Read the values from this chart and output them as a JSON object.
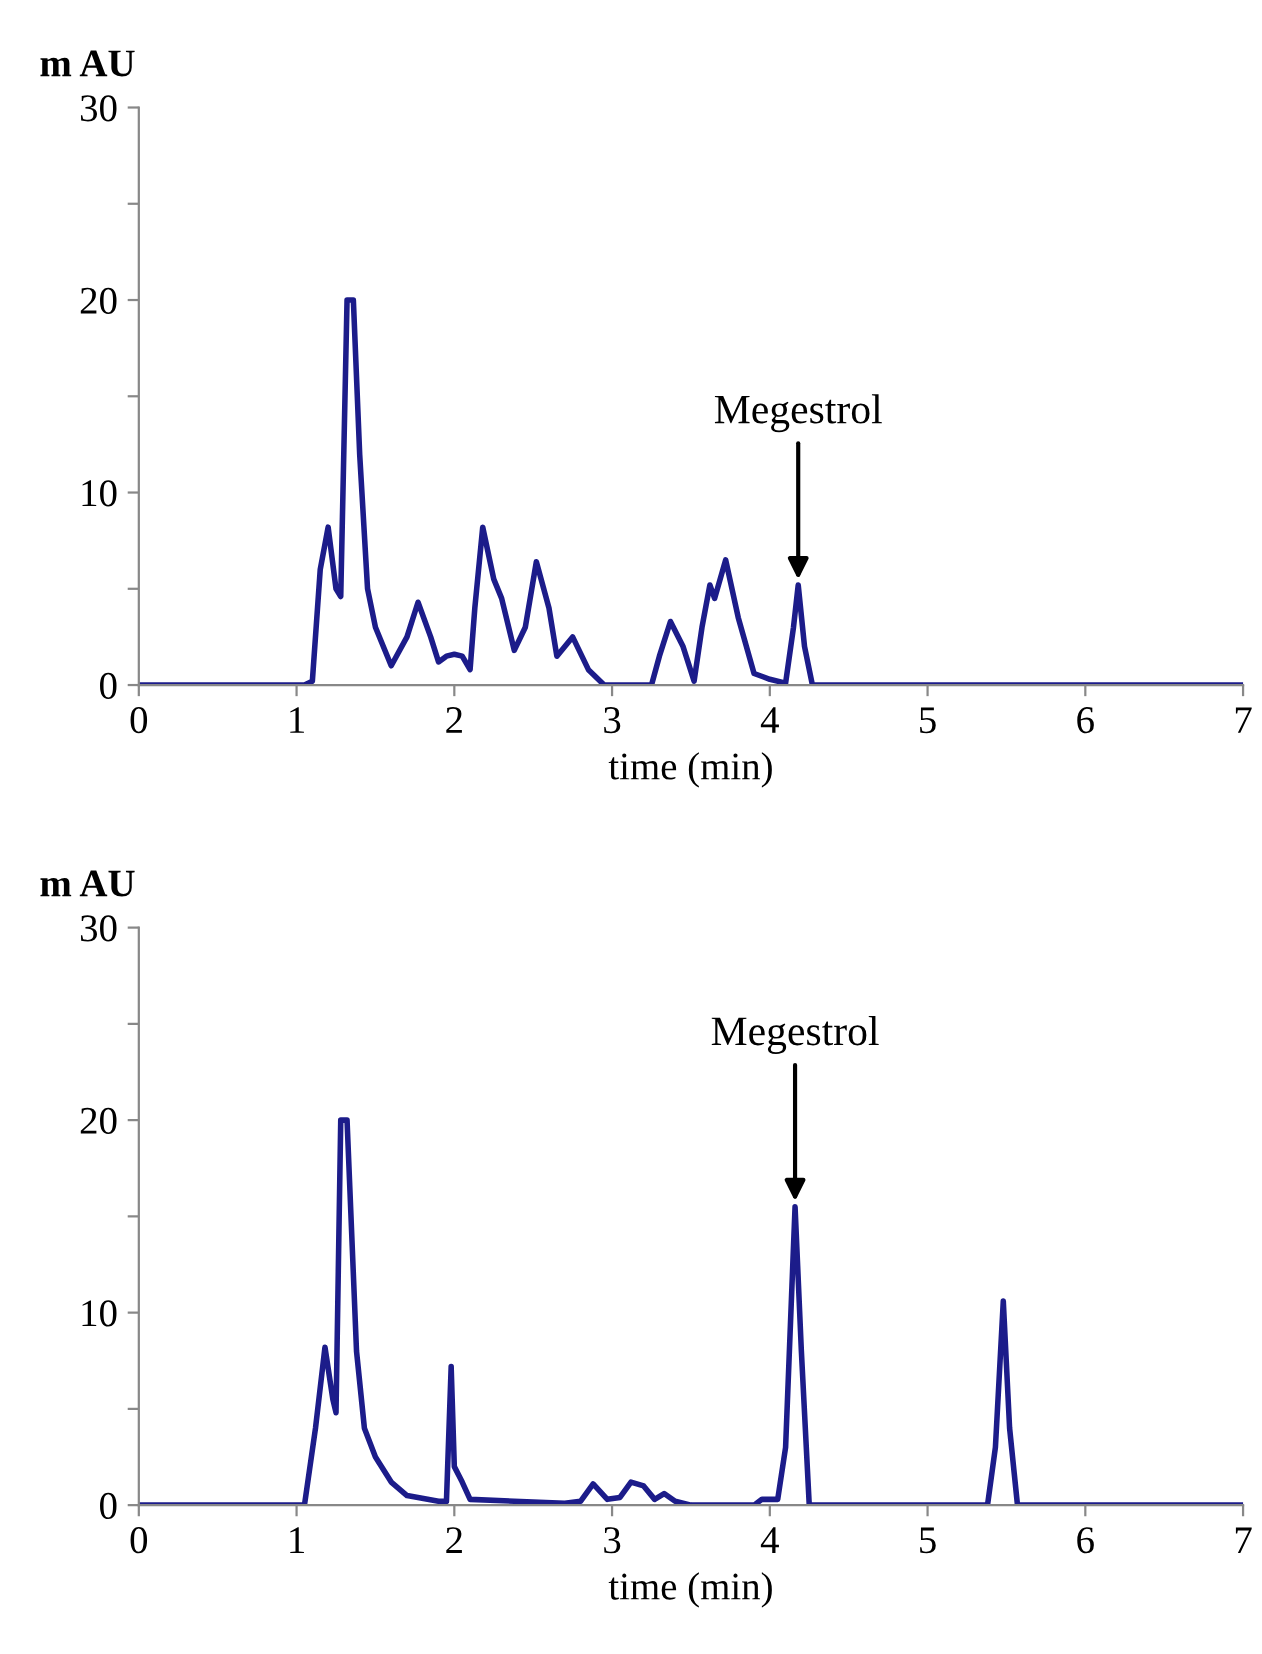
{
  "chart_data": [
    {
      "type": "line",
      "xlabel": "time (min)",
      "ylabel": "m AU",
      "xlim": [
        0,
        7
      ],
      "ylim": [
        0,
        30
      ],
      "xticks": [
        0,
        1,
        2,
        3,
        4,
        5,
        6,
        7
      ],
      "yticks": [
        0,
        {
          "value": 5,
          "label": null
        },
        10,
        {
          "value": 15,
          "label": null
        },
        20,
        {
          "value": 25,
          "label": null
        },
        30
      ],
      "grid": false,
      "legend": false,
      "annotations": [
        {
          "text": "Megestrol",
          "x": 4.18,
          "y": 5.2
        }
      ],
      "series": [
        {
          "color": "#1c1c8a",
          "x": [
            0,
            1.05,
            1.1,
            1.15,
            1.2,
            1.25,
            1.28,
            1.32,
            1.36,
            1.4,
            1.45,
            1.5,
            1.6,
            1.7,
            1.77,
            1.85,
            1.9,
            1.95,
            2.0,
            2.05,
            2.1,
            2.13,
            2.18,
            2.25,
            2.3,
            2.38,
            2.45,
            2.52,
            2.6,
            2.65,
            2.75,
            2.85,
            2.95,
            3.25,
            3.3,
            3.37,
            3.45,
            3.52,
            3.57,
            3.62,
            3.65,
            3.72,
            3.8,
            3.9,
            4.0,
            4.1,
            4.15,
            4.18,
            4.22,
            4.27,
            7
          ],
          "values": [
            0,
            0,
            0.2,
            6,
            8.2,
            5,
            4.6,
            20,
            20,
            12,
            5,
            3,
            1,
            2.5,
            4.3,
            2.5,
            1.2,
            1.5,
            1.6,
            1.5,
            0.8,
            4,
            8.2,
            5.5,
            4.5,
            1.8,
            3,
            6.4,
            4,
            1.5,
            2.5,
            0.8,
            0,
            0,
            1.5,
            3.3,
            2,
            0.2,
            3,
            5.2,
            4.5,
            6.5,
            3.5,
            0.6,
            0.3,
            0.1,
            3,
            5.2,
            2,
            0,
            0
          ]
        }
      ]
    },
    {
      "type": "line",
      "xlabel": "time (min)",
      "ylabel": "m AU",
      "xlim": [
        0,
        7
      ],
      "ylim": [
        0,
        30
      ],
      "xticks": [
        0,
        1,
        2,
        3,
        4,
        5,
        6,
        7
      ],
      "yticks": [
        0,
        {
          "value": 5,
          "label": null
        },
        10,
        {
          "value": 15,
          "label": null
        },
        20,
        {
          "value": 25,
          "label": null
        },
        30
      ],
      "grid": false,
      "legend": false,
      "annotations": [
        {
          "text": "Megestrol",
          "x": 4.16,
          "y": 15.5
        }
      ],
      "series": [
        {
          "color": "#1c1c8a",
          "x": [
            0,
            1.05,
            1.12,
            1.18,
            1.23,
            1.25,
            1.28,
            1.32,
            1.38,
            1.43,
            1.5,
            1.6,
            1.7,
            1.9,
            1.95,
            1.98,
            2.0,
            2.05,
            2.1,
            2.7,
            2.8,
            2.88,
            2.97,
            3.05,
            3.12,
            3.2,
            3.27,
            3.33,
            3.4,
            3.5,
            3.9,
            3.95,
            4.05,
            4.1,
            4.16,
            4.2,
            4.25,
            5.38,
            5.43,
            5.48,
            5.52,
            5.57,
            7
          ],
          "values": [
            0,
            0,
            4,
            8.2,
            5.5,
            4.8,
            20,
            20,
            8,
            4,
            2.5,
            1.2,
            0.5,
            0.2,
            0.2,
            7.2,
            2,
            1.2,
            0.3,
            0.1,
            0.2,
            1.1,
            0.3,
            0.4,
            1.2,
            1,
            0.3,
            0.6,
            0.2,
            0,
            0,
            0.3,
            0.3,
            3,
            15.5,
            8,
            0,
            0,
            3,
            10.6,
            4,
            0,
            0
          ]
        }
      ]
    }
  ]
}
